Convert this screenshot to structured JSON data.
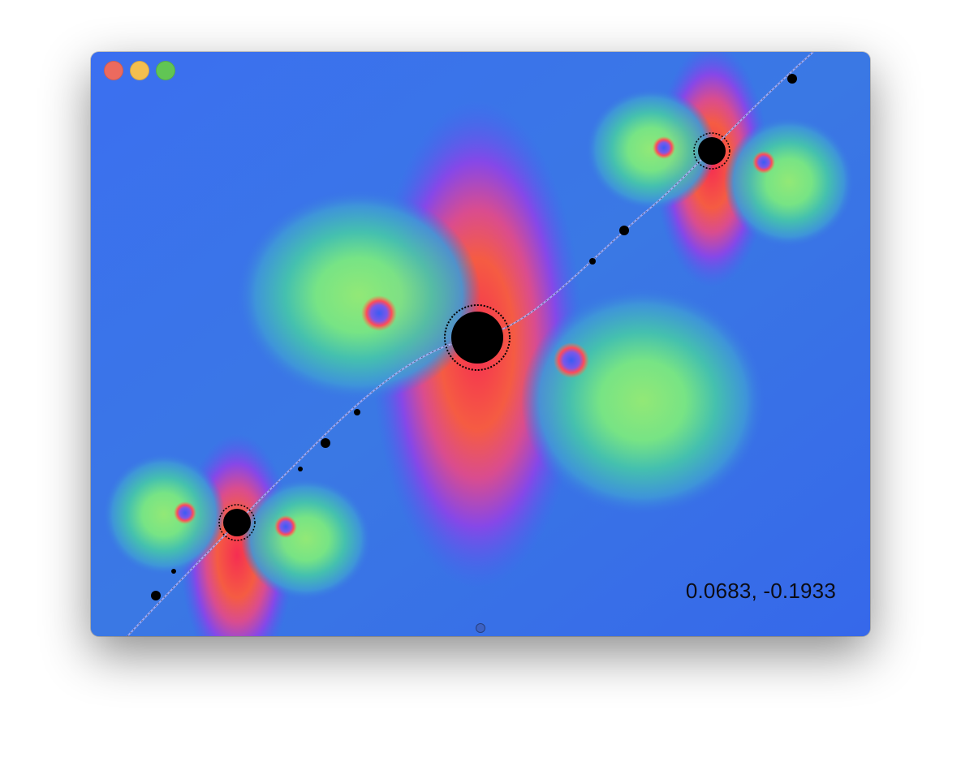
{
  "window": {
    "controls": {
      "close": "close-button",
      "minimize": "minimize-button",
      "zoom": "zoom-button"
    },
    "colors": {
      "close": "#ec6a5e",
      "minimize": "#f4bf4f",
      "zoom": "#61c554",
      "background": "#3a6fe8"
    }
  },
  "viewer": {
    "coordinate_readout": "0.0683, -0.1933"
  }
}
